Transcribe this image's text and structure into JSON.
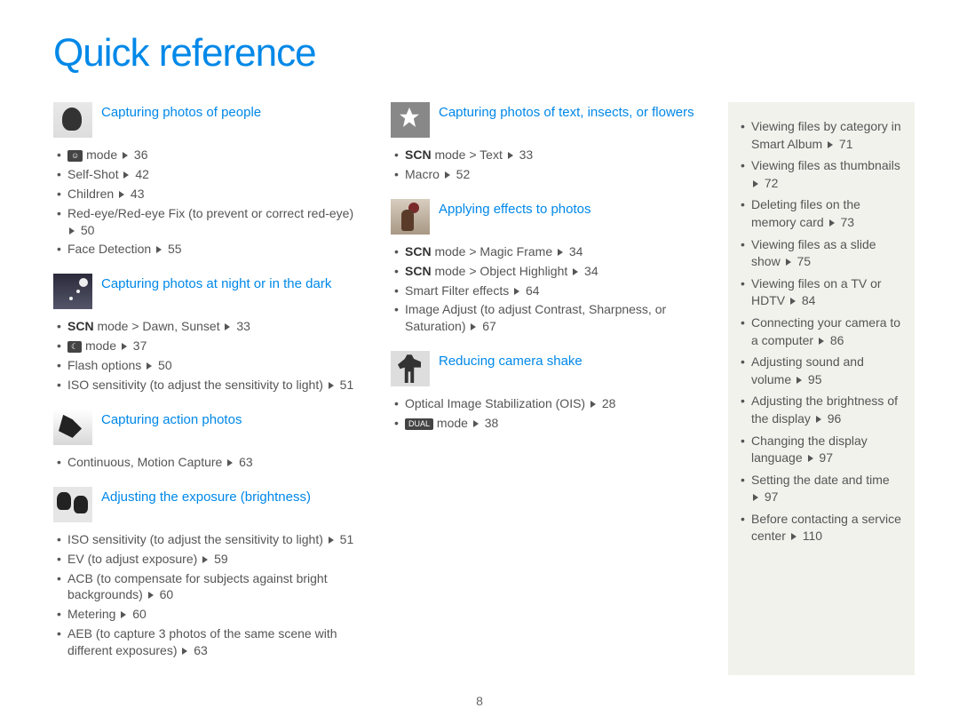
{
  "title": "Quick reference",
  "page_number": "8",
  "triangle_color": "#555555",
  "link_color": "#0088e8",
  "text_color": "#555555",
  "sidebar_bg": "#f2f2ed",
  "col1": [
    {
      "title": "Capturing photos of people",
      "thumb": "people",
      "items": [
        {
          "pre_glyph": "face",
          "text": " mode",
          "page": "36"
        },
        {
          "text": "Self-Shot",
          "page": "42"
        },
        {
          "text": "Children",
          "page": "43"
        },
        {
          "text": "Red-eye/Red-eye Fix (to prevent or correct red-eye)",
          "page": "50"
        },
        {
          "text": "Face Detection",
          "page": "55"
        }
      ]
    },
    {
      "title": "Capturing photos at night or in the dark",
      "thumb": "night",
      "items": [
        {
          "scn": true,
          "text": " mode > Dawn, Sunset",
          "page": "33"
        },
        {
          "pre_glyph": "moon",
          "text": " mode",
          "page": "37"
        },
        {
          "text": "Flash options",
          "page": "50"
        },
        {
          "text": "ISO sensitivity (to adjust the sensitivity to light)",
          "page": "51"
        }
      ]
    },
    {
      "title": "Capturing action photos",
      "thumb": "action",
      "items": [
        {
          "text": "Continuous, Motion Capture",
          "page": "63"
        }
      ]
    },
    {
      "title": "Adjusting the exposure (brightness)",
      "thumb": "exposure",
      "items": [
        {
          "text": "ISO sensitivity (to adjust the sensitivity to light)",
          "page": "51"
        },
        {
          "text": "EV (to adjust exposure)",
          "page": "59"
        },
        {
          "text": "ACB (to compensate for subjects against bright backgrounds)",
          "page": "60"
        },
        {
          "text": "Metering",
          "page": "60"
        },
        {
          "text": "AEB (to capture 3 photos of the same scene with different exposures)",
          "page": "63"
        }
      ]
    }
  ],
  "col2": [
    {
      "title": "Capturing photos of text, insects, or flowers",
      "thumb": "flower",
      "items": [
        {
          "scn": true,
          "text": " mode > Text",
          "page": "33"
        },
        {
          "text": "Macro",
          "page": "52"
        }
      ]
    },
    {
      "title": "Applying effects to photos",
      "thumb": "effects",
      "items": [
        {
          "scn": true,
          "text": " mode > Magic Frame",
          "page": "34"
        },
        {
          "scn": true,
          "text": " mode > Object Highlight",
          "page": "34"
        },
        {
          "text": "Smart Filter effects",
          "page": "64"
        },
        {
          "text": "Image Adjust (to adjust Contrast, Sharpness, or Saturation)",
          "page": "67"
        }
      ]
    },
    {
      "title": "Reducing camera shake",
      "thumb": "shake",
      "items": [
        {
          "text": "Optical Image Stabilization (OIS)",
          "page": "28"
        },
        {
          "pre_glyph": "dual",
          "text": " mode",
          "page": "38"
        }
      ]
    }
  ],
  "sidebar": [
    {
      "text": "Viewing files by category in Smart Album",
      "page": "71"
    },
    {
      "text": "Viewing files as thumbnails",
      "page": "72"
    },
    {
      "text": "Deleting files on the memory card",
      "page": "73"
    },
    {
      "text": "Viewing files as a slide show",
      "page": "75"
    },
    {
      "text": "Viewing files on a TV or HDTV",
      "page": "84"
    },
    {
      "text": "Connecting your camera to a computer",
      "page": "86"
    },
    {
      "text": "Adjusting sound and volume",
      "page": "95"
    },
    {
      "text": "Adjusting the brightness of the display",
      "page": "96"
    },
    {
      "text": "Changing the display language",
      "page": "97"
    },
    {
      "text": "Setting the date and time",
      "page": "97"
    },
    {
      "text": "Before contacting a service center",
      "page": "110"
    }
  ],
  "glyphs": {
    "face": "☺",
    "moon": "☾",
    "dual": "DUAL"
  }
}
